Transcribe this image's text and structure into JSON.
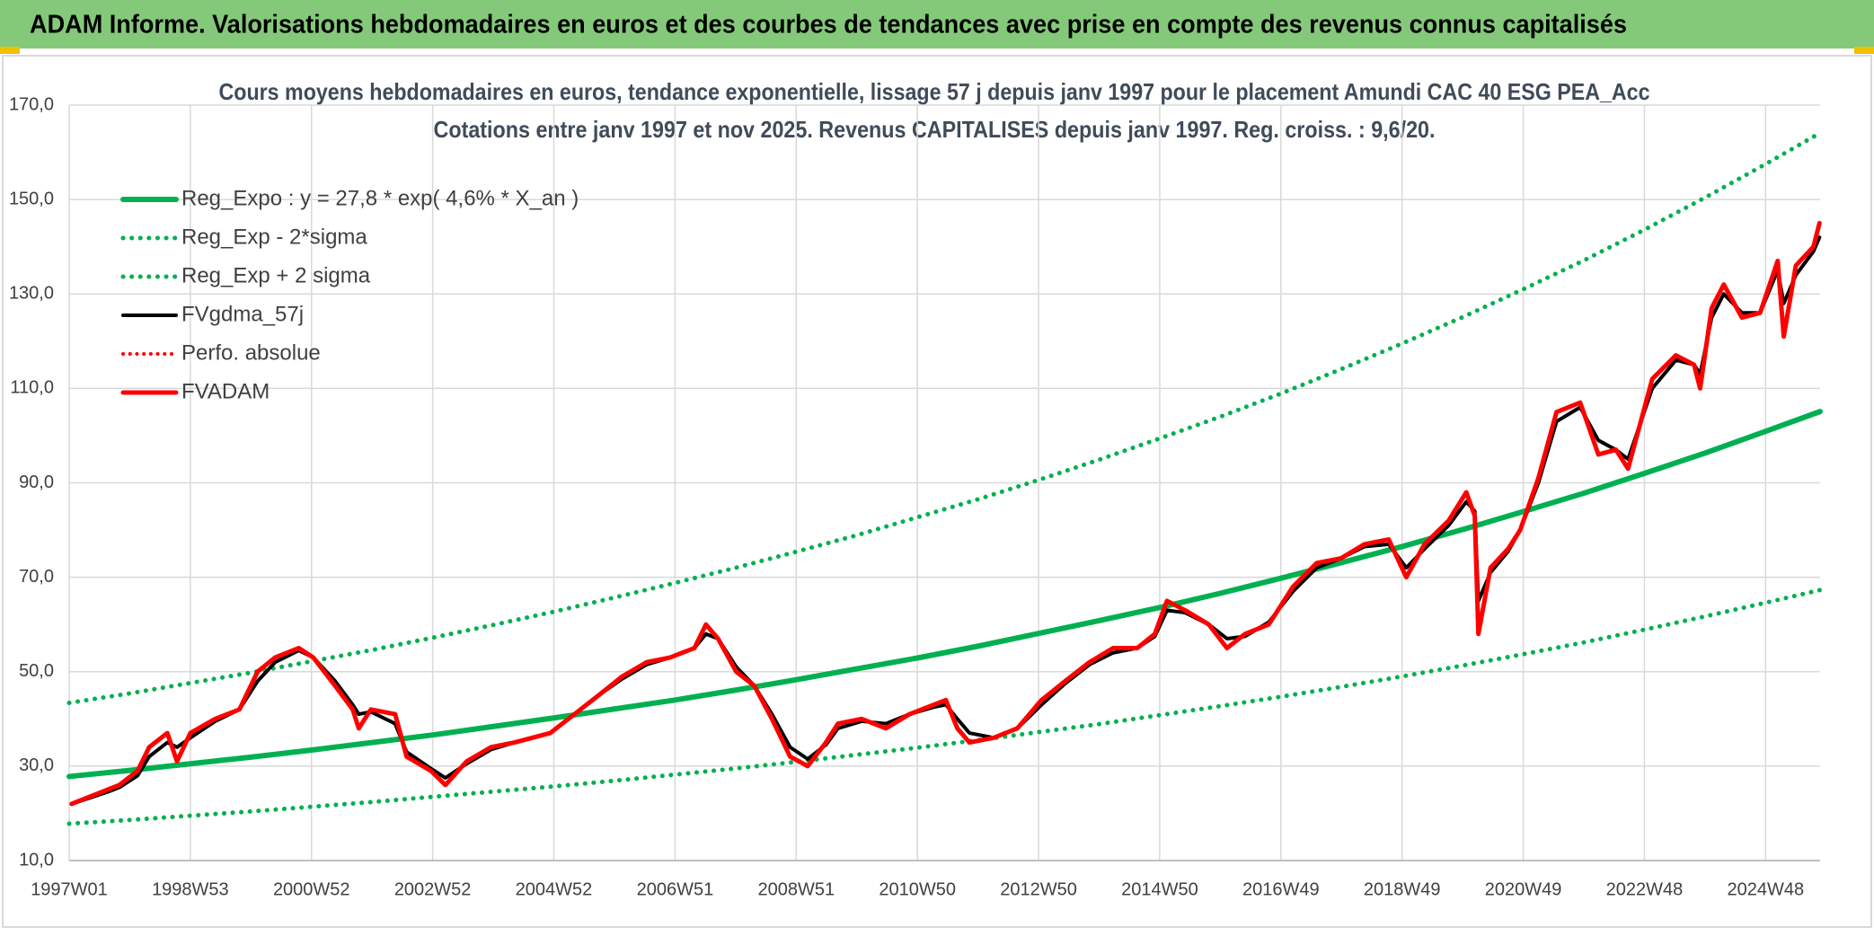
{
  "header": "ADAM Informe. Valorisations hebdomadaires en euros et des courbes de tendances avec prise en compte des revenus connus capitalisés",
  "chart_data": {
    "type": "line",
    "title": "Cours moyens hebdomadaires en euros, tendance exponentielle, lissage 57 j depuis janv 1997 pour le placement Amundi CAC 40 ESG PEA_Acc",
    "subtitle": "Cotations entre janv 1997 et nov 2025. Revenus CAPITALISES depuis janv 1997. Reg. croiss. : 9,6/20.",
    "xlim": [
      1997,
      2025.9
    ],
    "xticks": [
      {
        "value": 1997,
        "label": "1997W01"
      },
      {
        "value": 1999,
        "label": "1998W53"
      },
      {
        "value": 2001,
        "label": "2000W52"
      },
      {
        "value": 2003,
        "label": "2002W52"
      },
      {
        "value": 2005,
        "label": "2004W52"
      },
      {
        "value": 2007,
        "label": "2006W51"
      },
      {
        "value": 2009,
        "label": "2008W51"
      },
      {
        "value": 2011,
        "label": "2010W50"
      },
      {
        "value": 2013,
        "label": "2012W50"
      },
      {
        "value": 2015,
        "label": "2014W50"
      },
      {
        "value": 2017,
        "label": "2016W49"
      },
      {
        "value": 2019,
        "label": "2018W49"
      },
      {
        "value": 2021,
        "label": "2020W49"
      },
      {
        "value": 2023,
        "label": "2022W48"
      },
      {
        "value": 2025,
        "label": "2024W48"
      }
    ],
    "ylim": [
      10,
      170
    ],
    "yticks": [
      {
        "value": 10,
        "label": "10,0"
      },
      {
        "value": 30,
        "label": "30,0"
      },
      {
        "value": 50,
        "label": "50,0"
      },
      {
        "value": 70,
        "label": "70,0"
      },
      {
        "value": 90,
        "label": "90,0"
      },
      {
        "value": 110,
        "label": "110,0"
      },
      {
        "value": 130,
        "label": "130,0"
      },
      {
        "value": 150,
        "label": "150,0"
      },
      {
        "value": 170,
        "label": "170,0"
      }
    ],
    "grid": true,
    "legend": "top-left",
    "series": [
      {
        "name": "Reg_Expo : y = 27,8 * exp( 4,6% *  X_an )",
        "color": "#00b050",
        "style": "solid",
        "width": 6,
        "x": [
          1997,
          1998,
          1999,
          2000,
          2001,
          2002,
          2003,
          2004,
          2005,
          2006,
          2007,
          2008,
          2009,
          2010,
          2011,
          2012,
          2013,
          2014,
          2015,
          2016,
          2017,
          2018,
          2019,
          2020,
          2021,
          2022,
          2023,
          2024,
          2025,
          2025.9
        ],
        "values": [
          27.8,
          29.1,
          30.5,
          31.9,
          33.4,
          35.0,
          36.6,
          38.4,
          40.2,
          42.1,
          44.0,
          46.1,
          48.3,
          50.6,
          52.9,
          55.4,
          58.1,
          60.8,
          63.6,
          66.6,
          69.8,
          73.1,
          76.5,
          80.1,
          83.9,
          87.8,
          92.0,
          96.3,
          100.9,
          105.1
        ]
      },
      {
        "name": "Reg_Exp - 2*sigma",
        "color": "#00b050",
        "style": "dotted",
        "width": 5,
        "x": [
          1997,
          1998,
          1999,
          2000,
          2001,
          2002,
          2003,
          2004,
          2005,
          2006,
          2007,
          2008,
          2009,
          2010,
          2011,
          2012,
          2013,
          2014,
          2015,
          2016,
          2017,
          2018,
          2019,
          2020,
          2021,
          2022,
          2023,
          2024,
          2025,
          2025.9
        ],
        "values": [
          17.8,
          18.6,
          19.5,
          20.4,
          21.4,
          22.4,
          23.5,
          24.6,
          25.7,
          26.9,
          28.2,
          29.5,
          30.9,
          32.4,
          33.9,
          35.5,
          37.2,
          38.9,
          40.8,
          42.7,
          44.7,
          46.8,
          49.0,
          51.3,
          53.7,
          56.2,
          58.9,
          61.7,
          64.6,
          67.3
        ]
      },
      {
        "name": "Reg_Exp + 2 sigma",
        "color": "#00b050",
        "style": "dotted",
        "width": 5,
        "x": [
          1997,
          1998,
          1999,
          2000,
          2001,
          2002,
          2003,
          2004,
          2005,
          2006,
          2007,
          2008,
          2009,
          2010,
          2011,
          2012,
          2013,
          2014,
          2015,
          2016,
          2017,
          2018,
          2019,
          2020,
          2021,
          2022,
          2023,
          2024,
          2025,
          2025.9
        ],
        "values": [
          43.4,
          45.4,
          47.6,
          49.8,
          52.2,
          54.6,
          57.2,
          59.9,
          62.7,
          65.7,
          68.8,
          72.0,
          75.4,
          78.9,
          82.7,
          86.5,
          90.6,
          94.9,
          99.4,
          104.0,
          108.9,
          114.1,
          119.5,
          125.1,
          131.0,
          137.1,
          143.6,
          150.4,
          157.5,
          164.1
        ]
      },
      {
        "name": "FVgdma_57j",
        "color": "#000000",
        "style": "solid",
        "width": 4,
        "x": [
          1997.04,
          1997.63,
          1997.83,
          1998.13,
          1998.32,
          1998.62,
          1998.78,
          1999.0,
          1999.41,
          1999.81,
          2000.11,
          2000.4,
          2000.79,
          2001.03,
          2001.39,
          2001.68,
          2001.78,
          2001.98,
          2002.38,
          2002.57,
          2002.97,
          2003.21,
          2003.56,
          2003.96,
          2004.35,
          2004.94,
          2005.34,
          2005.74,
          2006.13,
          2006.53,
          2006.92,
          2007.32,
          2007.51,
          2007.71,
          2008.01,
          2008.31,
          2008.6,
          2008.9,
          2009.19,
          2009.49,
          2009.69,
          2010.08,
          2010.48,
          2010.87,
          2011.27,
          2011.47,
          2011.66,
          2011.86,
          2012.26,
          2012.65,
          2013.05,
          2013.44,
          2013.84,
          2014.23,
          2014.63,
          2014.92,
          2015.12,
          2015.42,
          2015.81,
          2016.11,
          2016.41,
          2016.8,
          2017.2,
          2017.59,
          2017.99,
          2018.38,
          2018.78,
          2019.07,
          2019.37,
          2019.77,
          2020.06,
          2020.2,
          2020.26,
          2020.46,
          2020.75,
          2020.95,
          2021.25,
          2021.55,
          2021.94,
          2022.24,
          2022.53,
          2022.73,
          2023.13,
          2023.52,
          2023.82,
          2023.92,
          2024.11,
          2024.31,
          2024.61,
          2024.91,
          2025.2,
          2025.3,
          2025.5,
          2025.79,
          2025.89
        ],
        "values": [
          22,
          24.5,
          25.5,
          28,
          32,
          35,
          34,
          36,
          39.5,
          42,
          48,
          52,
          54.5,
          53,
          48,
          43,
          41,
          41.5,
          39,
          33,
          29.5,
          27.5,
          30.5,
          33.5,
          35,
          37,
          41,
          45,
          48.5,
          51.5,
          53,
          55,
          58,
          57,
          51,
          47,
          41,
          34,
          31.5,
          34.5,
          38,
          39.5,
          39,
          41,
          42.5,
          43,
          40,
          37,
          36,
          38,
          43,
          47.5,
          51.5,
          54,
          55,
          57.5,
          63,
          62.5,
          60,
          57,
          57.5,
          60.5,
          67,
          72,
          74,
          76.5,
          77,
          72,
          76,
          81,
          86,
          84,
          65,
          71,
          75.5,
          80,
          90,
          103,
          106,
          99,
          97,
          95,
          110,
          116,
          115,
          113,
          125,
          130,
          126,
          126,
          135,
          128,
          134,
          139,
          142
        ]
      },
      {
        "name": "Perfo. absolue",
        "color": "#ff0000",
        "style": "dotted",
        "width": 4,
        "x": [
          1997.04,
          1997.63,
          1997.83,
          1998.13,
          1998.32,
          1998.62,
          1998.78,
          1999.0,
          1999.41,
          1999.81,
          2000.11,
          2000.4,
          2000.79,
          2001.03,
          2001.39,
          2001.68,
          2001.78,
          2001.98,
          2002.38,
          2002.57,
          2002.97,
          2003.21,
          2003.56,
          2003.96,
          2004.35,
          2004.94,
          2005.34,
          2005.74,
          2006.13,
          2006.53,
          2006.92,
          2007.32,
          2007.51,
          2007.71,
          2008.01,
          2008.31,
          2008.6,
          2008.9,
          2009.19,
          2009.49,
          2009.69,
          2010.08,
          2010.48,
          2010.87,
          2011.27,
          2011.47,
          2011.66,
          2011.86,
          2012.26,
          2012.65,
          2013.05,
          2013.44,
          2013.84,
          2014.23,
          2014.63,
          2014.92,
          2015.12,
          2015.42,
          2015.81,
          2016.11,
          2016.41,
          2016.8,
          2017.2,
          2017.59,
          2017.99,
          2018.38,
          2018.78,
          2019.07,
          2019.37,
          2019.77,
          2020.06,
          2020.2,
          2020.26,
          2020.46,
          2020.75,
          2020.95,
          2021.25,
          2021.55,
          2021.94,
          2022.24,
          2022.53,
          2022.73,
          2023.13,
          2023.52,
          2023.82,
          2023.92,
          2024.11,
          2024.31,
          2024.61,
          2024.91,
          2025.2,
          2025.3,
          2025.5,
          2025.79,
          2025.89
        ],
        "values": [
          22,
          25,
          26,
          29,
          34,
          37,
          31,
          37,
          40,
          42,
          50,
          53,
          55,
          53,
          47,
          42,
          38,
          42,
          41,
          32,
          29,
          26,
          31,
          34,
          35,
          37,
          41,
          45,
          49,
          52,
          53,
          55,
          60,
          57,
          50,
          47,
          40,
          32,
          30,
          35,
          39,
          40,
          38,
          41,
          43,
          44,
          38,
          35,
          36,
          38,
          44,
          48,
          52,
          55,
          55,
          58,
          65,
          63,
          60,
          55,
          58,
          60,
          68,
          73,
          74,
          77,
          78,
          70,
          77,
          82,
          88,
          83,
          58,
          72,
          76,
          80,
          91,
          105,
          107,
          96,
          97,
          93,
          112,
          117,
          115,
          110,
          127,
          132,
          125,
          126,
          137,
          121,
          136,
          140,
          145
        ]
      },
      {
        "name": "FVADAM",
        "color": "#ff0000",
        "style": "solid",
        "width": 5,
        "x": [
          1997.04,
          1997.63,
          1997.83,
          1998.13,
          1998.32,
          1998.62,
          1998.78,
          1999.0,
          1999.41,
          1999.81,
          2000.11,
          2000.4,
          2000.79,
          2001.03,
          2001.39,
          2001.68,
          2001.78,
          2001.98,
          2002.38,
          2002.57,
          2002.97,
          2003.21,
          2003.56,
          2003.96,
          2004.35,
          2004.94,
          2005.34,
          2005.74,
          2006.13,
          2006.53,
          2006.92,
          2007.32,
          2007.51,
          2007.71,
          2008.01,
          2008.31,
          2008.6,
          2008.9,
          2009.19,
          2009.49,
          2009.69,
          2010.08,
          2010.48,
          2010.87,
          2011.27,
          2011.47,
          2011.66,
          2011.86,
          2012.26,
          2012.65,
          2013.05,
          2013.44,
          2013.84,
          2014.23,
          2014.63,
          2014.92,
          2015.12,
          2015.42,
          2015.81,
          2016.11,
          2016.41,
          2016.8,
          2017.2,
          2017.59,
          2017.99,
          2018.38,
          2018.78,
          2019.07,
          2019.37,
          2019.77,
          2020.06,
          2020.2,
          2020.26,
          2020.46,
          2020.75,
          2020.95,
          2021.25,
          2021.55,
          2021.94,
          2022.24,
          2022.53,
          2022.73,
          2023.13,
          2023.52,
          2023.82,
          2023.92,
          2024.11,
          2024.31,
          2024.61,
          2024.91,
          2025.2,
          2025.3,
          2025.5,
          2025.79,
          2025.89
        ],
        "values": [
          22,
          25,
          26,
          29,
          34,
          37,
          31,
          37,
          40,
          42,
          50,
          53,
          55,
          53,
          47,
          42,
          38,
          42,
          41,
          32,
          29,
          26,
          31,
          34,
          35,
          37,
          41,
          45,
          49,
          52,
          53,
          55,
          60,
          57,
          50,
          47,
          40,
          32,
          30,
          35,
          39,
          40,
          38,
          41,
          43,
          44,
          38,
          35,
          36,
          38,
          44,
          48,
          52,
          55,
          55,
          58,
          65,
          63,
          60,
          55,
          58,
          60,
          68,
          73,
          74,
          77,
          78,
          70,
          77,
          82,
          88,
          83,
          58,
          72,
          76,
          80,
          91,
          105,
          107,
          96,
          97,
          93,
          112,
          117,
          115,
          110,
          127,
          132,
          125,
          126,
          137,
          121,
          136,
          140,
          145
        ]
      }
    ]
  }
}
